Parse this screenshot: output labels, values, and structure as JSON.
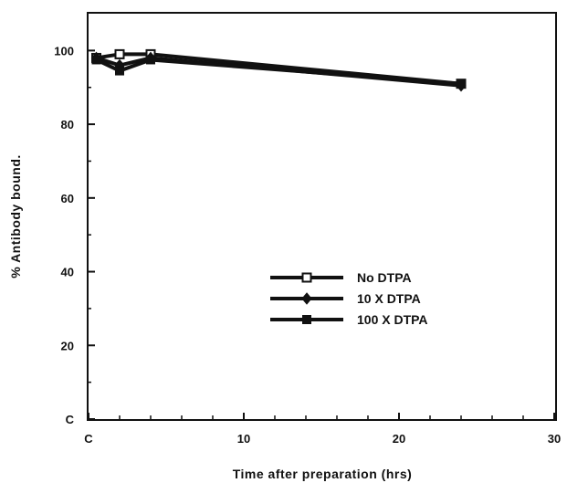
{
  "chart_data": {
    "type": "line",
    "xlabel": "Time after preparation (hrs)",
    "ylabel": "% Antibody bound.",
    "xlim": [
      0,
      30
    ],
    "ylim": [
      0,
      110
    ],
    "x_ticks": [
      0,
      10,
      20,
      30
    ],
    "x_tick_labels": [
      "C",
      "10",
      "20",
      "30"
    ],
    "y_ticks": [
      0,
      20,
      40,
      60,
      80,
      100
    ],
    "y_tick_labels": [
      "C",
      "20",
      "40",
      "60",
      "80",
      "100"
    ],
    "grid": false,
    "legend_position": "center-right",
    "series": [
      {
        "name": "No DTPA",
        "marker": "open-square",
        "x": [
          0.5,
          2,
          4,
          24
        ],
        "y": [
          98,
          99,
          99,
          91
        ]
      },
      {
        "name": "10 X DTPA",
        "marker": "filled-diamond",
        "x": [
          0.5,
          2,
          4,
          24
        ],
        "y": [
          98,
          96,
          98,
          90.5
        ]
      },
      {
        "name": "100 X DTPA",
        "marker": "filled-square",
        "x": [
          0.5,
          2,
          4,
          24
        ],
        "y": [
          97.5,
          94.5,
          97.5,
          91
        ]
      }
    ]
  }
}
